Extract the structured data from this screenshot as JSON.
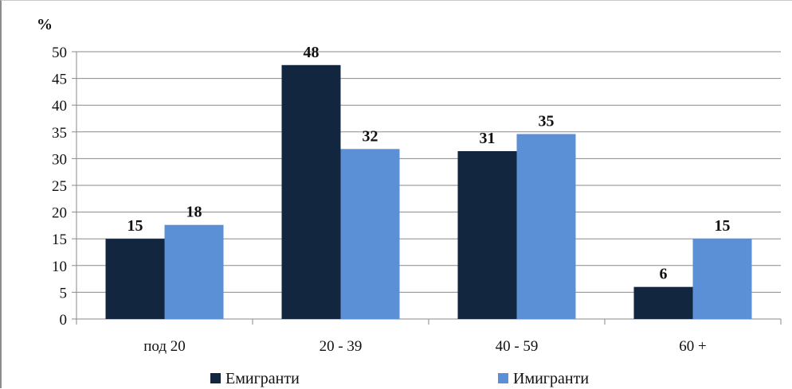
{
  "chart_data": {
    "type": "bar",
    "ylabel": "%",
    "ylim": [
      0,
      50
    ],
    "yticks": [
      0,
      5,
      10,
      15,
      20,
      25,
      30,
      35,
      40,
      45,
      50
    ],
    "grid": true,
    "legend_position": "bottom",
    "categories": [
      "под 20",
      "20 - 39",
      "40 - 59",
      "60 +"
    ],
    "series": [
      {
        "name": "Емигранти",
        "values": [
          15,
          47.5,
          31.4,
          6
        ],
        "labels": [
          "15",
          "48",
          "31",
          "6"
        ],
        "color": "#132640"
      },
      {
        "name": "Имигранти",
        "values": [
          17.6,
          31.8,
          34.6,
          15
        ],
        "labels": [
          "18",
          "32",
          "35",
          "15"
        ],
        "color": "#5b8fd6"
      }
    ]
  }
}
